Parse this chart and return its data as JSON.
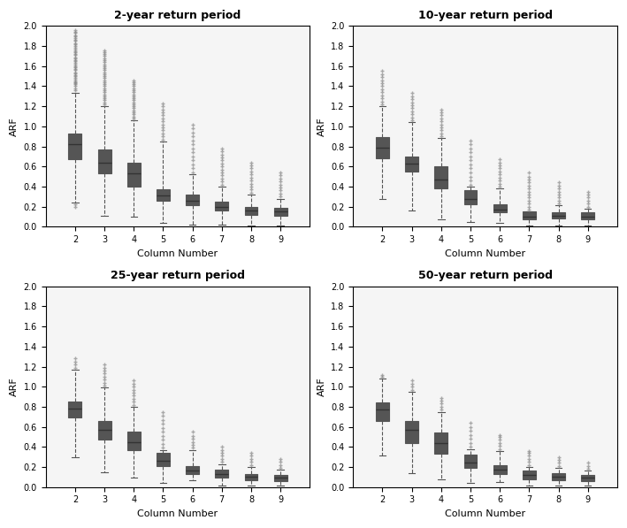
{
  "xlabel": "Column Number",
  "ylabel": "ARF",
  "ylim": [
    0.0,
    2.0
  ],
  "yticks": [
    0.0,
    0.2,
    0.4,
    0.6,
    0.8,
    1.0,
    1.2,
    1.4,
    1.6,
    1.8,
    2.0
  ],
  "xlim": [
    1,
    10
  ],
  "xticks": [
    2,
    3,
    4,
    5,
    6,
    7,
    8,
    9
  ],
  "plots": [
    {
      "title": "2-year return period",
      "boxes": [
        {
          "col": 2,
          "q1": 0.67,
          "median": 0.82,
          "q3": 0.93,
          "whislo": 0.24,
          "whishi": 1.33,
          "fliers_above": [
            1.36,
            1.38,
            1.4,
            1.42,
            1.43,
            1.44,
            1.45,
            1.47,
            1.48,
            1.5,
            1.51,
            1.53,
            1.54,
            1.56,
            1.57,
            1.59,
            1.6,
            1.62,
            1.63,
            1.65,
            1.66,
            1.68,
            1.69,
            1.71,
            1.72,
            1.74,
            1.75,
            1.77,
            1.78,
            1.8,
            1.82,
            1.83,
            1.85,
            1.86,
            1.88,
            1.9,
            1.91,
            1.93,
            1.94,
            1.96
          ],
          "fliers_below": [
            0.22,
            0.2
          ]
        },
        {
          "col": 3,
          "q1": 0.53,
          "median": 0.64,
          "q3": 0.77,
          "whislo": 0.11,
          "whishi": 1.2,
          "fliers_above": [
            1.22,
            1.24,
            1.26,
            1.28,
            1.3,
            1.32,
            1.34,
            1.36,
            1.38,
            1.4,
            1.42,
            1.44,
            1.46,
            1.48,
            1.5,
            1.52,
            1.54,
            1.56,
            1.58,
            1.6,
            1.62,
            1.64,
            1.66,
            1.68,
            1.7,
            1.72,
            1.74,
            1.76
          ],
          "fliers_below": []
        },
        {
          "col": 4,
          "q1": 0.4,
          "median": 0.53,
          "q3": 0.64,
          "whislo": 0.1,
          "whishi": 1.06,
          "fliers_above": [
            1.08,
            1.1,
            1.12,
            1.14,
            1.16,
            1.18,
            1.2,
            1.22,
            1.24,
            1.26,
            1.28,
            1.3,
            1.32,
            1.34,
            1.36,
            1.38,
            1.4,
            1.42,
            1.44,
            1.46
          ],
          "fliers_below": []
        },
        {
          "col": 5,
          "q1": 0.26,
          "median": 0.31,
          "q3": 0.37,
          "whislo": 0.04,
          "whishi": 0.85,
          "fliers_above": [
            0.87,
            0.9,
            0.93,
            0.96,
            0.99,
            1.02,
            1.05,
            1.08,
            1.11,
            1.14,
            1.17,
            1.2,
            1.23
          ],
          "fliers_below": []
        },
        {
          "col": 6,
          "q1": 0.21,
          "median": 0.26,
          "q3": 0.32,
          "whislo": 0.02,
          "whishi": 0.52,
          "fliers_above": [
            0.54,
            0.58,
            0.62,
            0.66,
            0.7,
            0.74,
            0.78,
            0.82,
            0.86,
            0.9,
            0.94,
            0.98,
            1.02
          ],
          "fliers_below": []
        },
        {
          "col": 7,
          "q1": 0.16,
          "median": 0.2,
          "q3": 0.25,
          "whislo": 0.02,
          "whishi": 0.4,
          "fliers_above": [
            0.42,
            0.45,
            0.48,
            0.51,
            0.54,
            0.57,
            0.6,
            0.63,
            0.66,
            0.69,
            0.72,
            0.75,
            0.78
          ],
          "fliers_below": []
        },
        {
          "col": 8,
          "q1": 0.12,
          "median": 0.16,
          "q3": 0.2,
          "whislo": 0.01,
          "whishi": 0.32,
          "fliers_above": [
            0.34,
            0.37,
            0.4,
            0.43,
            0.46,
            0.49,
            0.52,
            0.55,
            0.58,
            0.61,
            0.64
          ],
          "fliers_below": []
        },
        {
          "col": 9,
          "q1": 0.11,
          "median": 0.15,
          "q3": 0.19,
          "whislo": 0.01,
          "whishi": 0.28,
          "fliers_above": [
            0.3,
            0.33,
            0.36,
            0.39,
            0.42,
            0.45,
            0.48,
            0.51,
            0.54
          ],
          "fliers_below": []
        }
      ]
    },
    {
      "title": "10-year return period",
      "boxes": [
        {
          "col": 2,
          "q1": 0.68,
          "median": 0.79,
          "q3": 0.89,
          "whislo": 0.28,
          "whishi": 1.2,
          "fliers_above": [
            1.22,
            1.25,
            1.28,
            1.31,
            1.34,
            1.37,
            1.4,
            1.43,
            1.46,
            1.49,
            1.52,
            1.55
          ],
          "fliers_below": []
        },
        {
          "col": 3,
          "q1": 0.55,
          "median": 0.63,
          "q3": 0.7,
          "whislo": 0.16,
          "whishi": 1.04,
          "fliers_above": [
            1.06,
            1.09,
            1.12,
            1.15,
            1.18,
            1.21,
            1.24,
            1.27,
            1.3,
            1.33
          ],
          "fliers_below": []
        },
        {
          "col": 4,
          "q1": 0.38,
          "median": 0.47,
          "q3": 0.6,
          "whislo": 0.07,
          "whishi": 0.88,
          "fliers_above": [
            0.9,
            0.93,
            0.96,
            0.99,
            1.02,
            1.05,
            1.08,
            1.11,
            1.14,
            1.17
          ],
          "fliers_below": []
        },
        {
          "col": 5,
          "q1": 0.22,
          "median": 0.28,
          "q3": 0.36,
          "whislo": 0.05,
          "whishi": 0.4,
          "fliers_above": [
            0.42,
            0.46,
            0.5,
            0.54,
            0.58,
            0.62,
            0.66,
            0.7,
            0.74,
            0.78,
            0.82,
            0.86
          ],
          "fliers_below": []
        },
        {
          "col": 6,
          "q1": 0.14,
          "median": 0.17,
          "q3": 0.22,
          "whislo": 0.04,
          "whishi": 0.38,
          "fliers_above": [
            0.4,
            0.43,
            0.46,
            0.49,
            0.52,
            0.55,
            0.58,
            0.61,
            0.64,
            0.67
          ],
          "fliers_below": []
        },
        {
          "col": 7,
          "q1": 0.07,
          "median": 0.1,
          "q3": 0.15,
          "whislo": 0.01,
          "whishi": 0.15,
          "fliers_above": [
            0.17,
            0.2,
            0.23,
            0.26,
            0.29,
            0.32,
            0.35,
            0.38,
            0.41,
            0.44,
            0.47,
            0.5,
            0.54
          ],
          "fliers_below": []
        },
        {
          "col": 8,
          "q1": 0.08,
          "median": 0.11,
          "q3": 0.14,
          "whislo": 0.01,
          "whishi": 0.21,
          "fliers_above": [
            0.23,
            0.26,
            0.29,
            0.32,
            0.35,
            0.38,
            0.41,
            0.44
          ],
          "fliers_below": []
        },
        {
          "col": 9,
          "q1": 0.07,
          "median": 0.1,
          "q3": 0.14,
          "whislo": 0.01,
          "whishi": 0.18,
          "fliers_above": [
            0.2,
            0.23,
            0.26,
            0.29,
            0.32,
            0.35
          ],
          "fliers_below": []
        }
      ]
    },
    {
      "title": "25-year return period",
      "boxes": [
        {
          "col": 2,
          "q1": 0.69,
          "median": 0.78,
          "q3": 0.85,
          "whislo": 0.3,
          "whishi": 1.17,
          "fliers_above": [
            1.19,
            1.22,
            1.25,
            1.28
          ],
          "fliers_below": []
        },
        {
          "col": 3,
          "q1": 0.47,
          "median": 0.57,
          "q3": 0.66,
          "whislo": 0.15,
          "whishi": 0.99,
          "fliers_above": [
            1.01,
            1.04,
            1.07,
            1.1,
            1.13,
            1.16,
            1.19,
            1.22
          ],
          "fliers_below": []
        },
        {
          "col": 4,
          "q1": 0.37,
          "median": 0.45,
          "q3": 0.55,
          "whislo": 0.09,
          "whishi": 0.8,
          "fliers_above": [
            0.82,
            0.85,
            0.88,
            0.91,
            0.94,
            0.97,
            1.0,
            1.03,
            1.06
          ],
          "fliers_below": []
        },
        {
          "col": 5,
          "q1": 0.21,
          "median": 0.26,
          "q3": 0.34,
          "whislo": 0.04,
          "whishi": 0.37,
          "fliers_above": [
            0.39,
            0.43,
            0.47,
            0.51,
            0.55,
            0.59,
            0.63,
            0.67,
            0.71,
            0.75
          ],
          "fliers_below": []
        },
        {
          "col": 6,
          "q1": 0.13,
          "median": 0.16,
          "q3": 0.21,
          "whislo": 0.07,
          "whishi": 0.37,
          "fliers_above": [
            0.39,
            0.42,
            0.45,
            0.48,
            0.51,
            0.55
          ],
          "fliers_below": []
        },
        {
          "col": 7,
          "q1": 0.09,
          "median": 0.13,
          "q3": 0.17,
          "whislo": 0.01,
          "whishi": 0.23,
          "fliers_above": [
            0.25,
            0.28,
            0.31,
            0.34,
            0.37,
            0.4
          ],
          "fliers_below": []
        },
        {
          "col": 8,
          "q1": 0.07,
          "median": 0.1,
          "q3": 0.13,
          "whislo": 0.01,
          "whishi": 0.2,
          "fliers_above": [
            0.22,
            0.25,
            0.28,
            0.31,
            0.34
          ],
          "fliers_below": []
        },
        {
          "col": 9,
          "q1": 0.06,
          "median": 0.09,
          "q3": 0.12,
          "whislo": 0.01,
          "whishi": 0.17,
          "fliers_above": [
            0.19,
            0.22,
            0.25,
            0.28
          ],
          "fliers_below": []
        }
      ]
    },
    {
      "title": "50-year return period",
      "boxes": [
        {
          "col": 2,
          "q1": 0.66,
          "median": 0.77,
          "q3": 0.84,
          "whislo": 0.31,
          "whishi": 1.08,
          "fliers_above": [
            1.1,
            1.12
          ],
          "fliers_below": []
        },
        {
          "col": 3,
          "q1": 0.44,
          "median": 0.57,
          "q3": 0.66,
          "whislo": 0.14,
          "whishi": 0.95,
          "fliers_above": [
            0.97,
            1.0,
            1.03,
            1.06
          ],
          "fliers_below": []
        },
        {
          "col": 4,
          "q1": 0.33,
          "median": 0.44,
          "q3": 0.54,
          "whislo": 0.08,
          "whishi": 0.75,
          "fliers_above": [
            0.77,
            0.8,
            0.83,
            0.86,
            0.89
          ],
          "fliers_below": []
        },
        {
          "col": 5,
          "q1": 0.19,
          "median": 0.24,
          "q3": 0.32,
          "whislo": 0.04,
          "whishi": 0.38,
          "fliers_above": [
            0.4,
            0.44,
            0.48,
            0.52,
            0.56,
            0.6,
            0.64
          ],
          "fliers_below": []
        },
        {
          "col": 6,
          "q1": 0.13,
          "median": 0.17,
          "q3": 0.22,
          "whislo": 0.05,
          "whishi": 0.36,
          "fliers_above": [
            0.38,
            0.41,
            0.44,
            0.47,
            0.5,
            0.52
          ],
          "fliers_below": []
        },
        {
          "col": 7,
          "q1": 0.08,
          "median": 0.12,
          "q3": 0.16,
          "whislo": 0.01,
          "whishi": 0.2,
          "fliers_above": [
            0.22,
            0.25,
            0.28,
            0.31,
            0.34,
            0.36
          ],
          "fliers_below": []
        },
        {
          "col": 8,
          "q1": 0.07,
          "median": 0.1,
          "q3": 0.14,
          "whislo": 0.01,
          "whishi": 0.19,
          "fliers_above": [
            0.21,
            0.24,
            0.27,
            0.3
          ],
          "fliers_below": []
        },
        {
          "col": 9,
          "q1": 0.06,
          "median": 0.09,
          "q3": 0.12,
          "whislo": 0.01,
          "whishi": 0.16,
          "fliers_above": [
            0.18,
            0.21,
            0.24
          ],
          "fliers_below": []
        }
      ]
    }
  ],
  "box_facecolor": "#e8e8e8",
  "box_edgecolor": "#555555",
  "median_color": "#333333",
  "whisker_color": "#555555",
  "flier_color": "#888888",
  "cap_color": "#555555",
  "background_color": "#f5f5f5"
}
